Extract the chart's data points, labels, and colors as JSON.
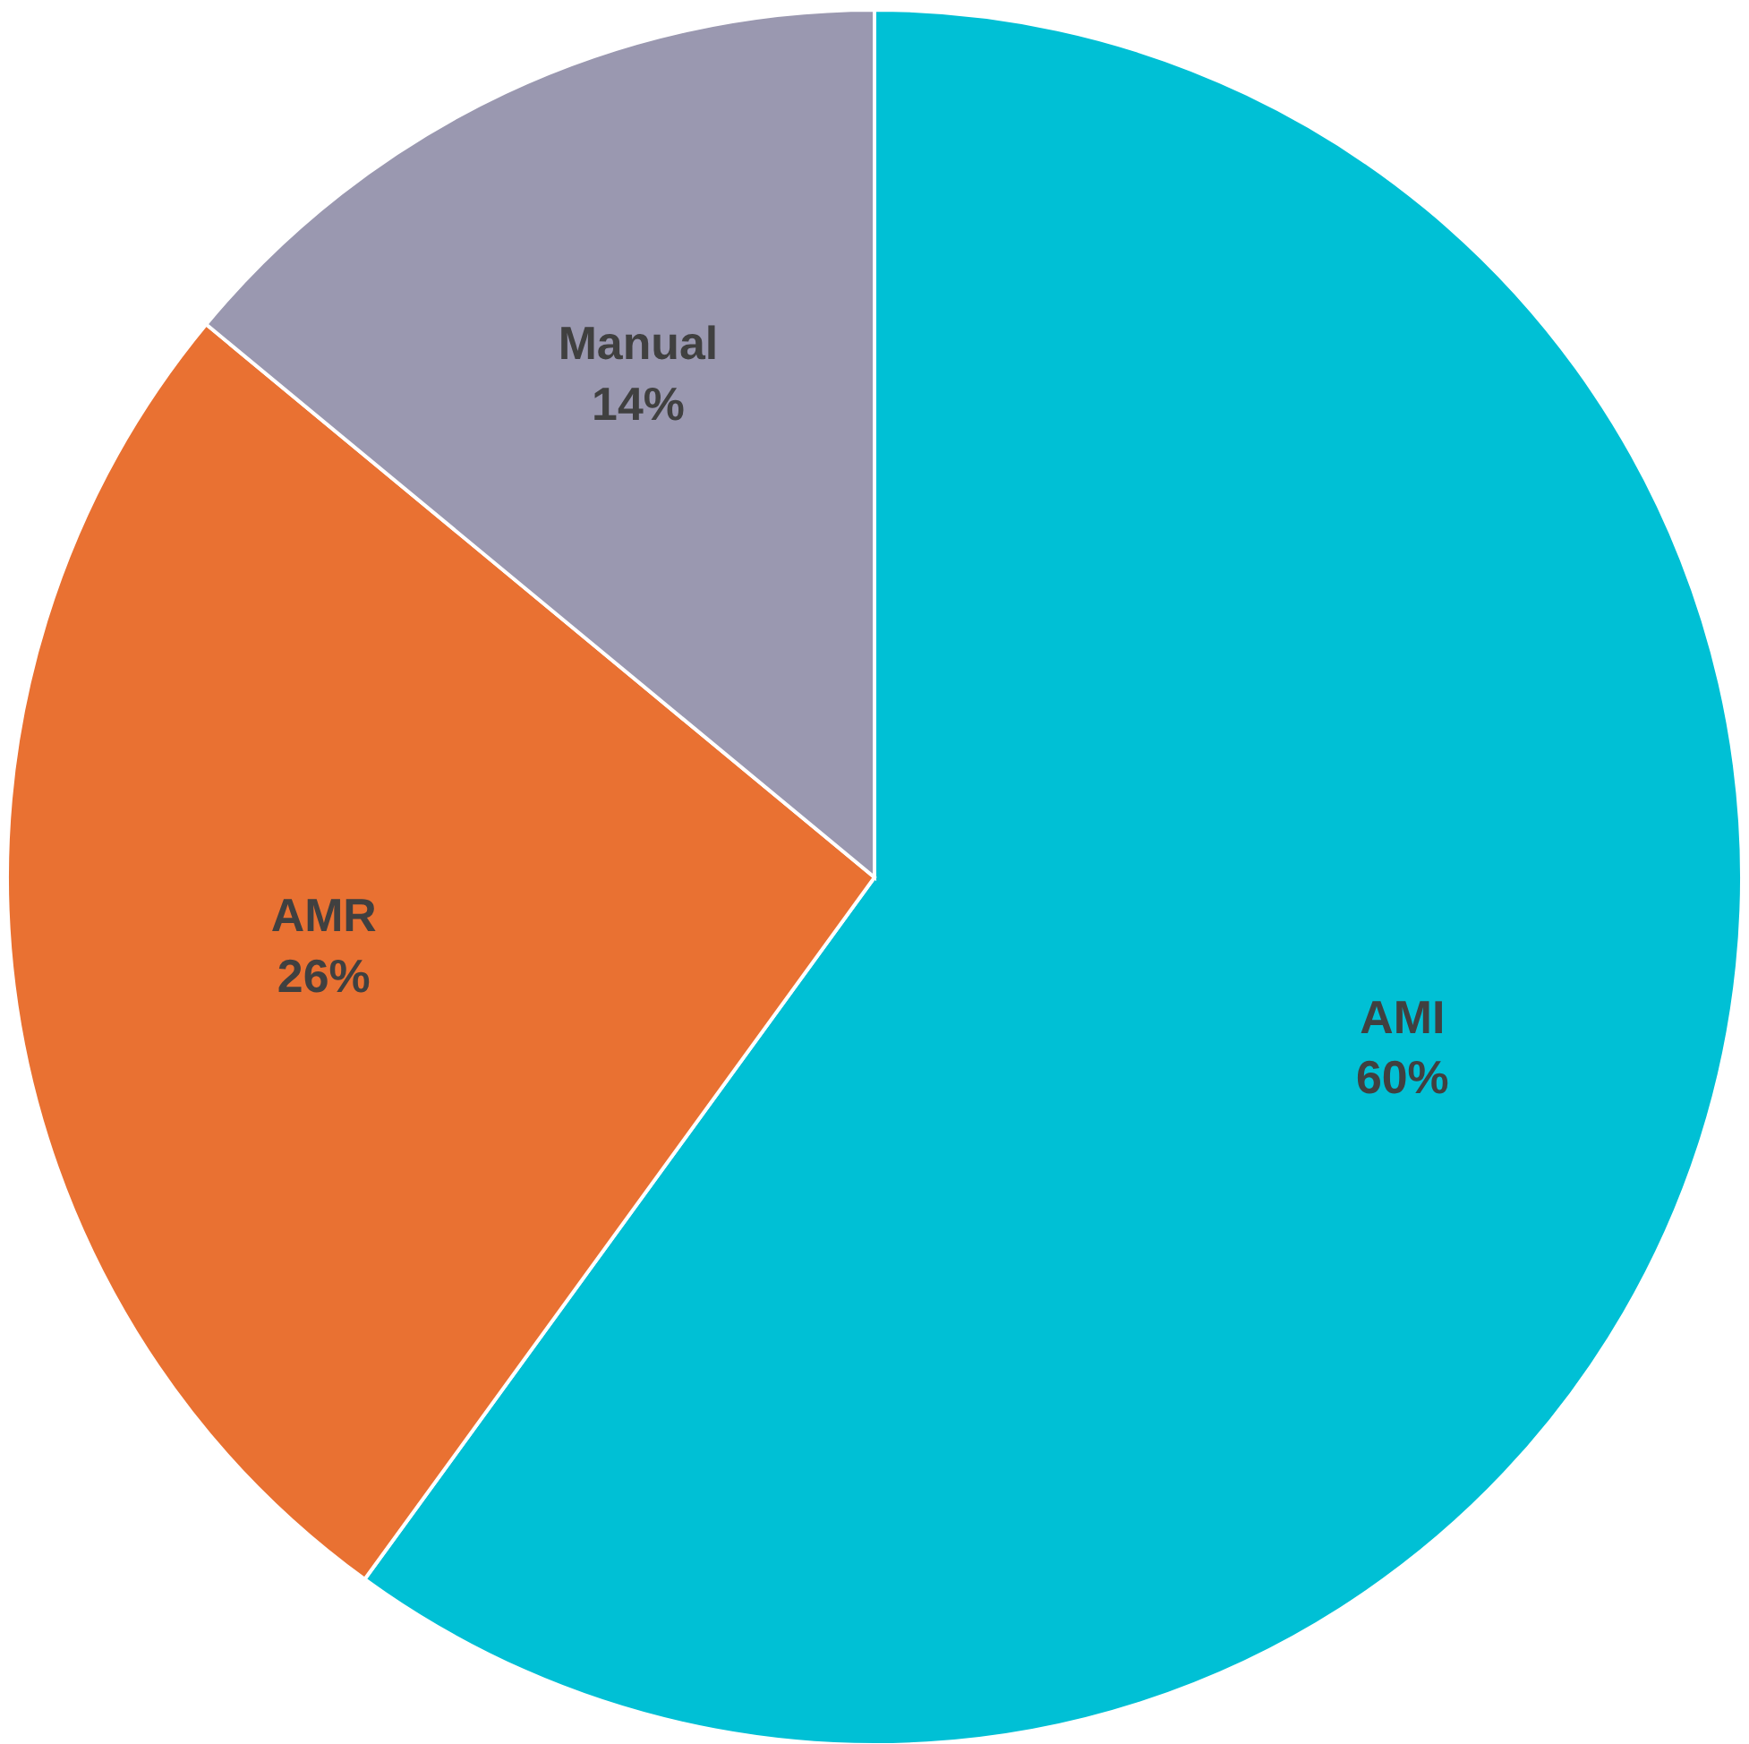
{
  "chart_data": {
    "type": "pie",
    "categories": [
      "AMI",
      "AMR",
      "Manual"
    ],
    "values": [
      60,
      26,
      14
    ],
    "colors": [
      "#00c0d5",
      "#e97132",
      "#9a98b0"
    ],
    "value_labels": [
      "60%",
      "26%",
      "14%"
    ],
    "legend": false
  }
}
